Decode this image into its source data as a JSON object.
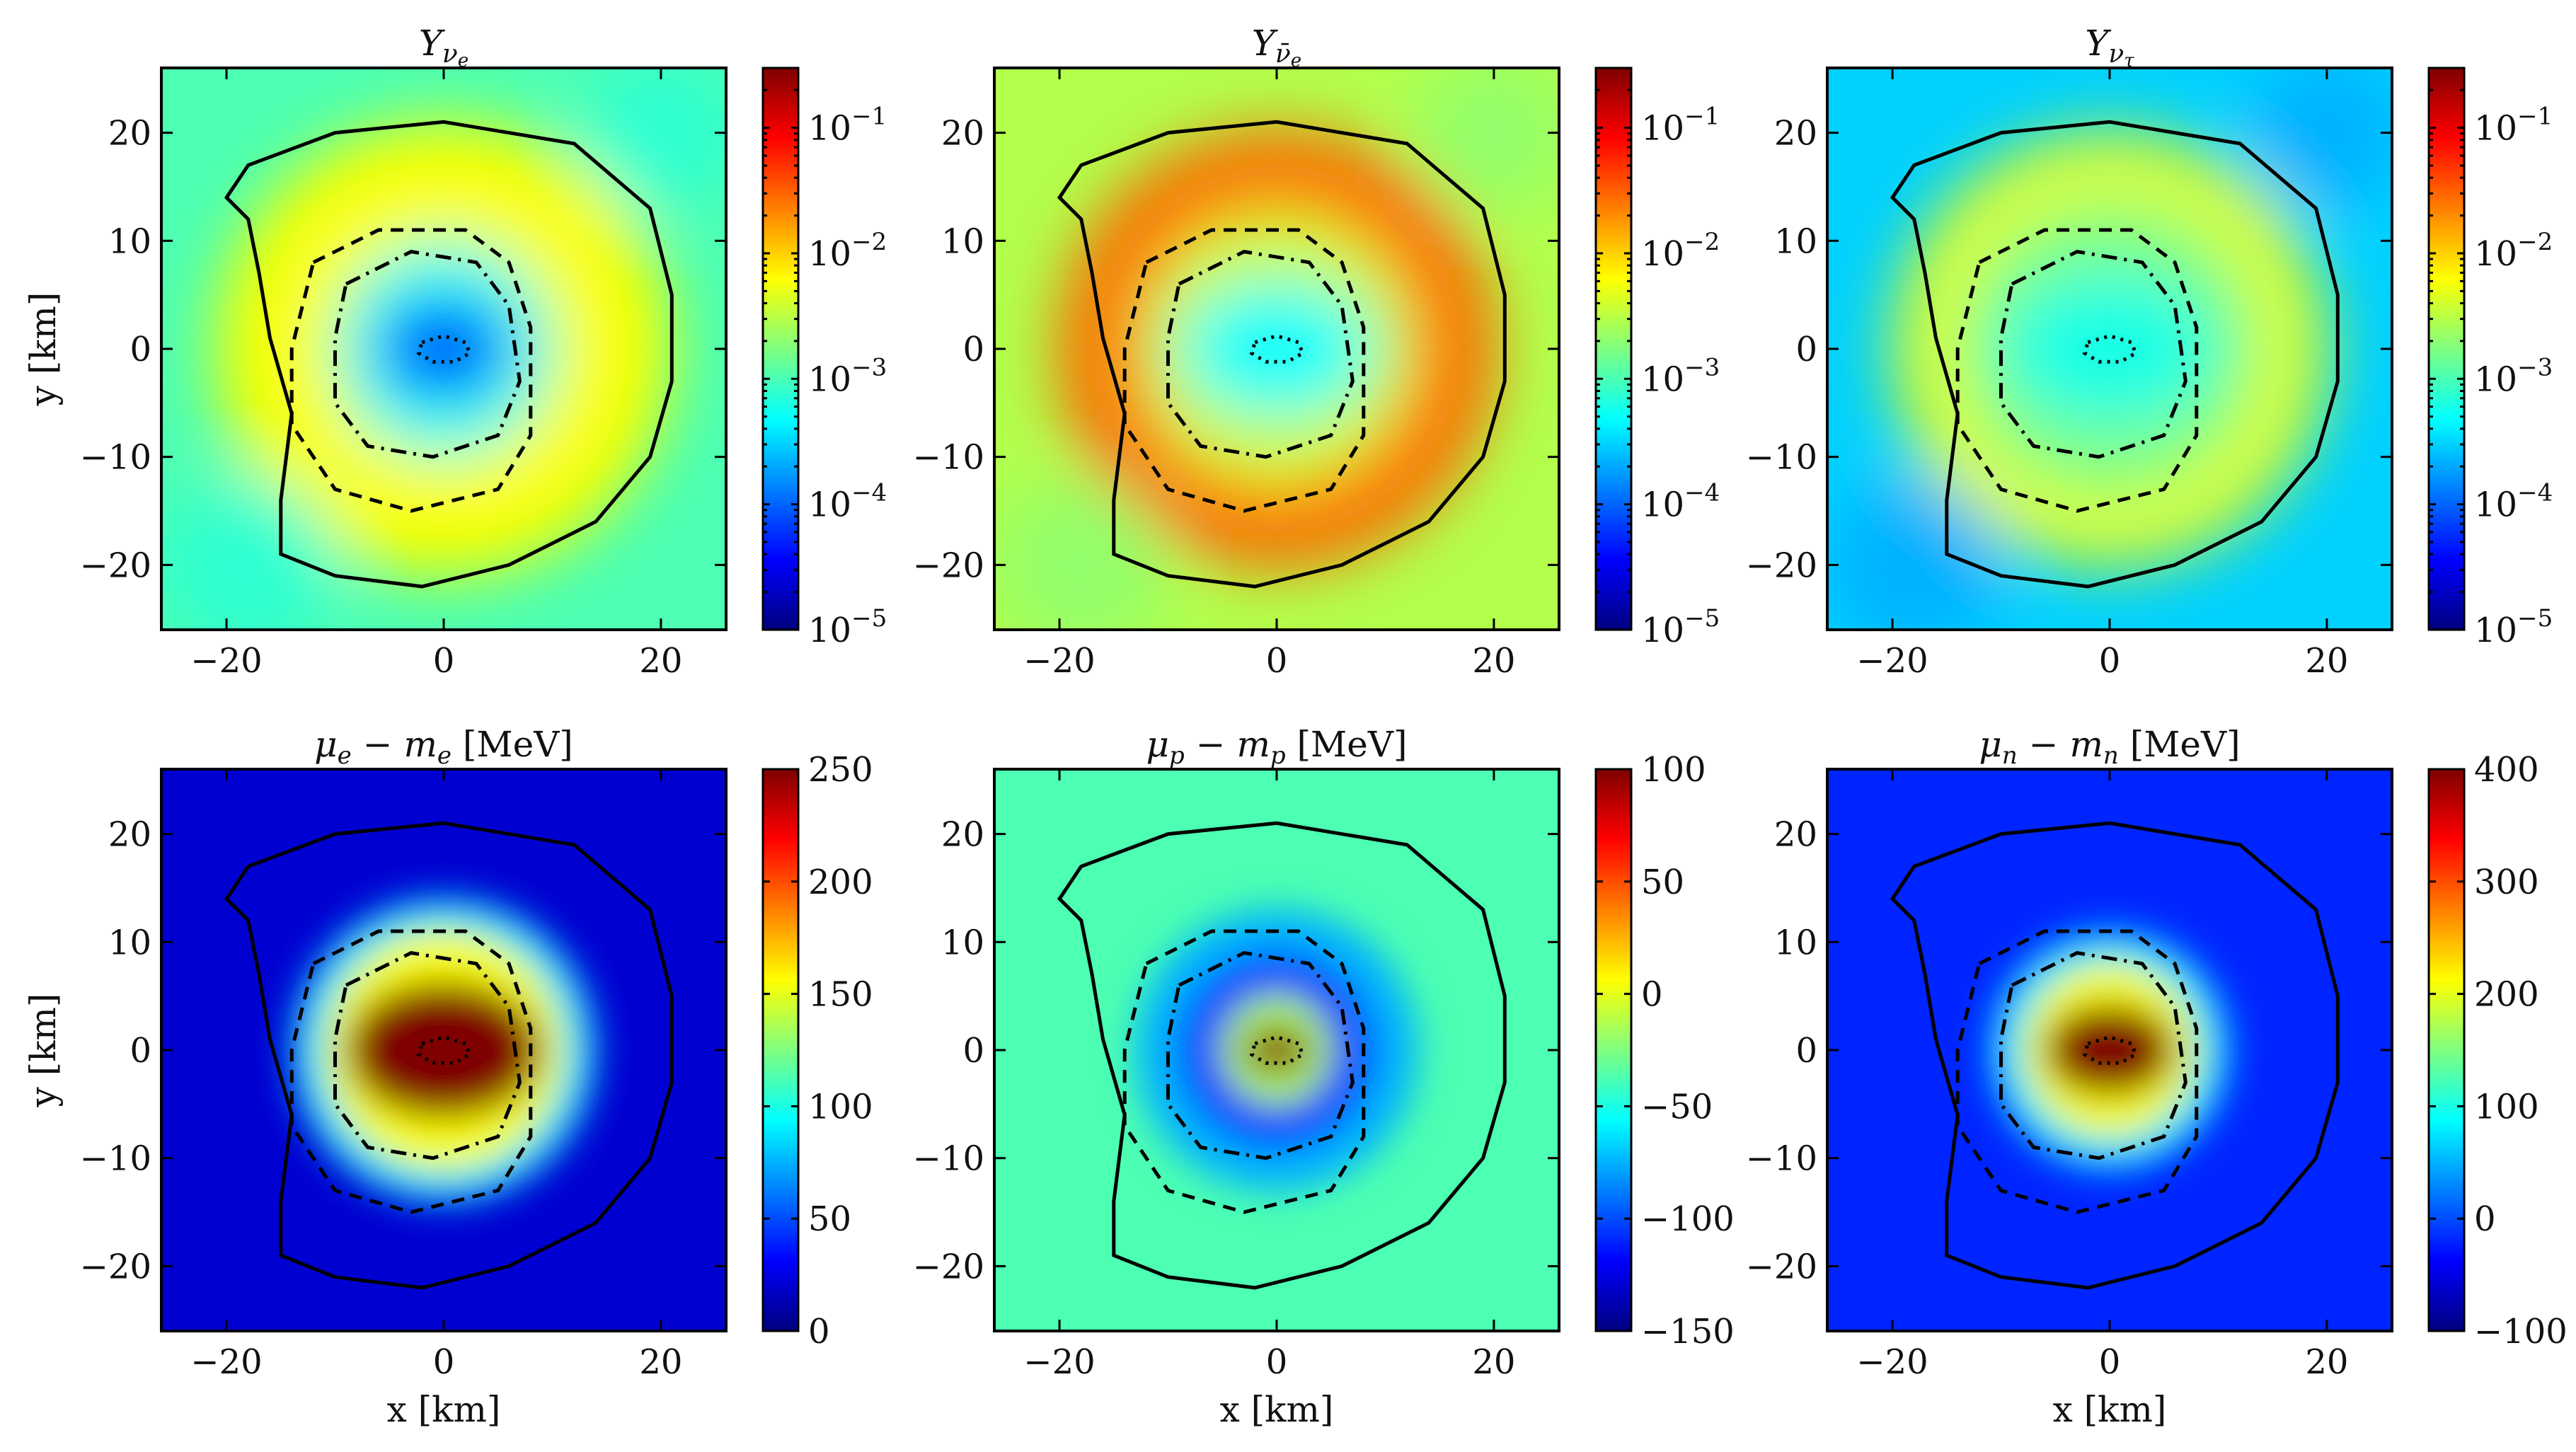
{
  "chart_data": [
    {
      "type": "heatmap",
      "title": "Y_{ν_e}",
      "title_main": "Y",
      "title_sub": "ν",
      "title_subsub": "e",
      "xlabel": "",
      "ylabel": "y [km]",
      "xlim": [
        -26,
        26
      ],
      "ylim": [
        -26,
        26
      ],
      "xticks": [
        -20,
        0,
        20
      ],
      "yticks": [
        -20,
        -10,
        0,
        10,
        20
      ],
      "xtick_labels": [
        "−20",
        "0",
        "20"
      ],
      "ytick_labels": [
        "−20",
        "−10",
        "0",
        "10",
        "20"
      ],
      "colorbar": {
        "scale": "log",
        "range": [
          1e-05,
          0.3
        ],
        "ticks": [
          1e-05,
          0.0001,
          0.001,
          0.01,
          0.1
        ],
        "labels": [
          "10",
          "10",
          "10",
          "10",
          "10"
        ],
        "exponents": [
          "−5",
          "−4",
          "−3",
          "−2",
          "−1"
        ]
      },
      "field": {
        "background": 0.45,
        "core": 0.15,
        "core_radius_km": 6,
        "ring": 0.62,
        "ring_radius_km": 17,
        "outer": 0.42
      }
    },
    {
      "type": "heatmap",
      "title": "Y_{ν̄_e}",
      "title_main": "Y",
      "title_sub": "ν̄",
      "title_subsub": "e",
      "xlabel": "",
      "ylabel": "",
      "xlim": [
        -26,
        26
      ],
      "ylim": [
        -26,
        26
      ],
      "xticks": [
        -20,
        0,
        20
      ],
      "yticks": [
        -20,
        -10,
        0,
        10,
        20
      ],
      "xtick_labels": [
        "−20",
        "0",
        "20"
      ],
      "ytick_labels": [
        "−20",
        "−10",
        "0",
        "10",
        "20"
      ],
      "colorbar": {
        "scale": "log",
        "range": [
          1e-05,
          0.3
        ],
        "ticks": [
          1e-05,
          0.0001,
          0.001,
          0.01,
          0.1
        ],
        "labels": [
          "10",
          "10",
          "10",
          "10",
          "10"
        ],
        "exponents": [
          "−5",
          "−4",
          "−3",
          "−2",
          "−1"
        ]
      },
      "field": {
        "background": 0.55,
        "core": 0.38,
        "core_radius_km": 9,
        "ring": 0.78,
        "ring_radius_km": 16,
        "outer": 0.52
      }
    },
    {
      "type": "heatmap",
      "title": "Y_{ν_τ}",
      "title_main": "Y",
      "title_sub": "ν",
      "title_subsub": "τ",
      "xlabel": "",
      "ylabel": "",
      "xlim": [
        -26,
        26
      ],
      "ylim": [
        -26,
        26
      ],
      "xticks": [
        -20,
        0,
        20
      ],
      "yticks": [
        -20,
        -10,
        0,
        10,
        20
      ],
      "xtick_labels": [
        "−20",
        "0",
        "20"
      ],
      "ytick_labels": [
        "−20",
        "−10",
        "0",
        "10",
        "20"
      ],
      "colorbar": {
        "scale": "log",
        "range": [
          1e-05,
          0.3
        ],
        "ticks": [
          1e-05,
          0.0001,
          0.001,
          0.01,
          0.1
        ],
        "labels": [
          "10",
          "10",
          "10",
          "10",
          "10"
        ],
        "exponents": [
          "−5",
          "−4",
          "−3",
          "−2",
          "−1"
        ]
      },
      "field": {
        "background": 0.33,
        "core": 0.4,
        "core_radius_km": 10,
        "ring": 0.6,
        "ring_radius_km": 16,
        "outer": 0.3
      }
    },
    {
      "type": "heatmap",
      "title": "μ_e − m_e [MeV]",
      "title_mu": "μ",
      "title_sub1": "e",
      "title_m": "m",
      "title_sub2": "e",
      "title_unit": "[MeV]",
      "xlabel": "x [km]",
      "ylabel": "y [km]",
      "xlim": [
        -26,
        26
      ],
      "ylim": [
        -26,
        26
      ],
      "xticks": [
        -20,
        0,
        20
      ],
      "yticks": [
        -20,
        -10,
        0,
        10,
        20
      ],
      "xtick_labels": [
        "−20",
        "0",
        "20"
      ],
      "ytick_labels": [
        "−20",
        "−10",
        "0",
        "10",
        "20"
      ],
      "colorbar": {
        "scale": "linear",
        "range": [
          0,
          250
        ],
        "ticks": [
          0,
          50,
          100,
          150,
          200,
          250
        ],
        "labels": [
          "0",
          "50",
          "100",
          "150",
          "200",
          "250"
        ]
      },
      "field": {
        "background": 0.08,
        "peak": 250,
        "peak_radius_km": 9
      }
    },
    {
      "type": "heatmap",
      "title": "μ_p − m_p [MeV]",
      "title_mu": "μ",
      "title_sub1": "p",
      "title_m": "m",
      "title_sub2": "p",
      "title_unit": "[MeV]",
      "xlabel": "x [km]",
      "ylabel": "",
      "xlim": [
        -26,
        26
      ],
      "ylim": [
        -26,
        26
      ],
      "xticks": [
        -20,
        0,
        20
      ],
      "yticks": [
        -20,
        -10,
        0,
        10,
        20
      ],
      "xtick_labels": [
        "−20",
        "0",
        "20"
      ],
      "ytick_labels": [
        "−20",
        "−10",
        "0",
        "10",
        "20"
      ],
      "colorbar": {
        "scale": "linear",
        "range": [
          -150,
          100
        ],
        "ticks": [
          -150,
          -100,
          -50,
          0,
          50,
          100
        ],
        "labels": [
          "−150",
          "−100",
          "−50",
          "0",
          "50",
          "100"
        ]
      },
      "field": {
        "background": 0.45,
        "trough": 0.18,
        "peak": 100,
        "peak_radius_km": 3
      }
    },
    {
      "type": "heatmap",
      "title": "μ_n − m_n [MeV]",
      "title_mu": "μ",
      "title_sub1": "n",
      "title_m": "m",
      "title_sub2": "n",
      "title_unit": "[MeV]",
      "xlabel": "x [km]",
      "ylabel": "",
      "xlim": [
        -26,
        26
      ],
      "ylim": [
        -26,
        26
      ],
      "xticks": [
        -20,
        0,
        20
      ],
      "yticks": [
        -20,
        -10,
        0,
        10,
        20
      ],
      "xtick_labels": [
        "−20",
        "0",
        "20"
      ],
      "ytick_labels": [
        "−20",
        "−10",
        "0",
        "10",
        "20"
      ],
      "colorbar": {
        "scale": "linear",
        "range": [
          -100,
          400
        ],
        "ticks": [
          -100,
          0,
          100,
          200,
          300,
          400
        ],
        "labels": [
          "−100",
          "0",
          "100",
          "200",
          "300",
          "400"
        ]
      },
      "field": {
        "background": 0.16,
        "peak": 400,
        "peak_radius_km": 6
      }
    }
  ],
  "contours": {
    "styles": [
      "solid",
      "dashed",
      "dashdot",
      "dotted"
    ],
    "solid_km": [
      [
        -18,
        12
      ],
      [
        -20,
        14
      ],
      [
        -18,
        17
      ],
      [
        -10,
        20
      ],
      [
        0,
        21
      ],
      [
        12,
        19
      ],
      [
        19,
        13
      ],
      [
        21,
        5
      ],
      [
        21,
        -3
      ],
      [
        19,
        -10
      ],
      [
        14,
        -16
      ],
      [
        6,
        -20
      ],
      [
        -2,
        -22
      ],
      [
        -10,
        -21
      ],
      [
        -15,
        -19
      ],
      [
        -15,
        -14
      ],
      [
        -14,
        -6
      ],
      [
        -16,
        1
      ],
      [
        -17,
        7
      ],
      [
        -18,
        12
      ]
    ],
    "dashed_km": [
      [
        -12,
        8
      ],
      [
        -6,
        11
      ],
      [
        2,
        11
      ],
      [
        6,
        8
      ],
      [
        8,
        2
      ],
      [
        8,
        -8
      ],
      [
        5,
        -13
      ],
      [
        -3,
        -15
      ],
      [
        -10,
        -13
      ],
      [
        -14,
        -7
      ],
      [
        -14,
        0
      ],
      [
        -12,
        8
      ]
    ],
    "dashdot_km": [
      [
        -9,
        6
      ],
      [
        -3,
        9
      ],
      [
        3,
        8
      ],
      [
        6,
        4
      ],
      [
        7,
        -3
      ],
      [
        5,
        -8
      ],
      [
        -1,
        -10
      ],
      [
        -7,
        -9
      ],
      [
        -10,
        -5
      ],
      [
        -10,
        1
      ],
      [
        -9,
        6
      ]
    ],
    "dotted_km": [
      [
        -2,
        0.6
      ],
      [
        0,
        1.2
      ],
      [
        2,
        0.6
      ],
      [
        2.4,
        -0.4
      ],
      [
        1,
        -1.2
      ],
      [
        -1,
        -1.2
      ],
      [
        -2.3,
        -0.4
      ],
      [
        -2,
        0.6
      ]
    ]
  },
  "colormap": {
    "name": "jet",
    "stops": [
      "#00007f",
      "#0000ff",
      "#007fff",
      "#00ffff",
      "#7fff7f",
      "#ffff00",
      "#ff7f00",
      "#ff0000",
      "#7f0000"
    ]
  }
}
